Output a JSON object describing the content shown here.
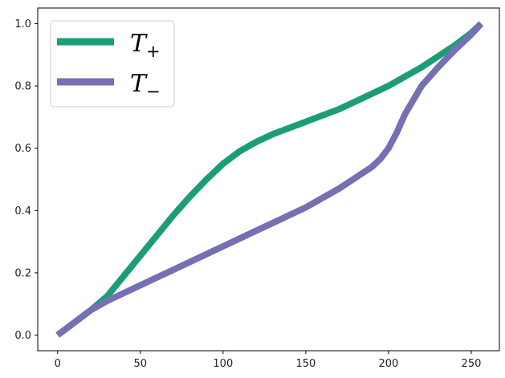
{
  "chart_data": {
    "type": "line",
    "title": "",
    "xlabel": "",
    "ylabel": "",
    "xlim": [
      -12,
      267
    ],
    "ylim": [
      -0.05,
      1.05
    ],
    "xticks": [
      0,
      50,
      100,
      150,
      200,
      250
    ],
    "xtick_labels": [
      "0",
      "50",
      "100",
      "150",
      "200",
      "250"
    ],
    "yticks": [
      0.0,
      0.2,
      0.4,
      0.6,
      0.8,
      1.0
    ],
    "ytick_labels": [
      "0.0",
      "0.2",
      "0.4",
      "0.6",
      "0.8",
      "1.0"
    ],
    "grid": false,
    "legend": "upper-left",
    "series": [
      {
        "name": "T",
        "name_subscript": "+",
        "color": "#1b9e77",
        "x": [
          0,
          10,
          20,
          30,
          40,
          50,
          60,
          70,
          80,
          90,
          100,
          110,
          120,
          130,
          140,
          150,
          160,
          170,
          180,
          190,
          200,
          210,
          220,
          230,
          240,
          250,
          256
        ],
        "y": [
          0.0,
          0.04,
          0.08,
          0.125,
          0.19,
          0.255,
          0.32,
          0.385,
          0.445,
          0.5,
          0.55,
          0.59,
          0.62,
          0.645,
          0.665,
          0.685,
          0.705,
          0.725,
          0.75,
          0.775,
          0.8,
          0.83,
          0.86,
          0.895,
          0.93,
          0.97,
          1.0
        ]
      },
      {
        "name": "T",
        "name_subscript": "−",
        "color": "#7570b3",
        "x": [
          0,
          10,
          20,
          30,
          40,
          50,
          60,
          70,
          80,
          90,
          100,
          110,
          120,
          130,
          140,
          150,
          160,
          170,
          180,
          190,
          195,
          200,
          205,
          210,
          220,
          230,
          240,
          250,
          256
        ],
        "y": [
          0.0,
          0.04,
          0.08,
          0.11,
          0.135,
          0.16,
          0.185,
          0.21,
          0.235,
          0.26,
          0.285,
          0.31,
          0.335,
          0.36,
          0.385,
          0.41,
          0.44,
          0.47,
          0.505,
          0.54,
          0.565,
          0.6,
          0.65,
          0.71,
          0.8,
          0.86,
          0.915,
          0.965,
          1.0
        ]
      }
    ]
  }
}
